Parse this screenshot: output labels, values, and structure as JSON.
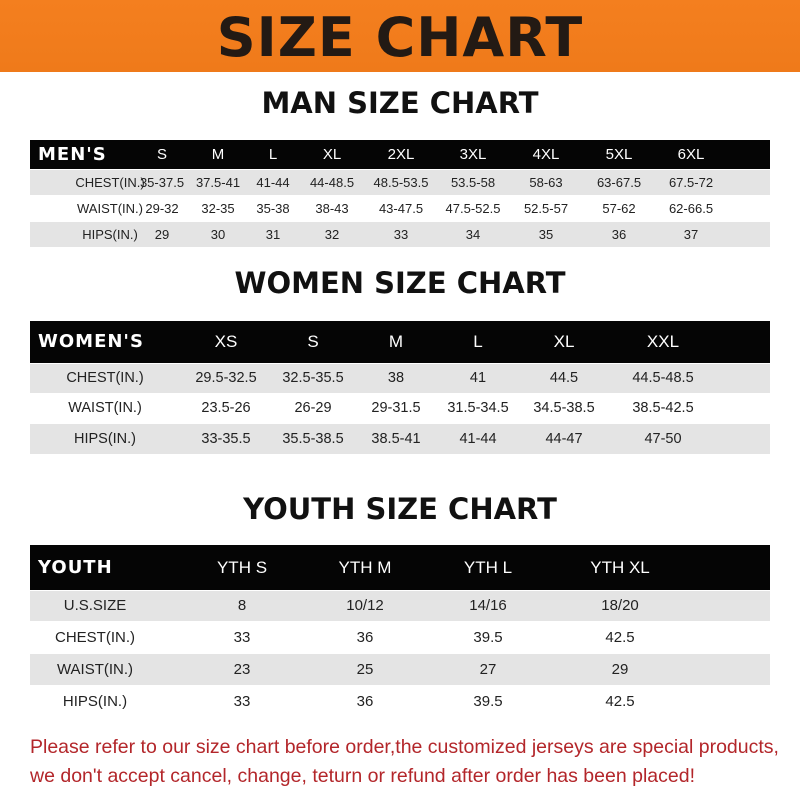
{
  "banner_title": "SIZE CHART",
  "men": {
    "title": "MAN SIZE CHART",
    "header": [
      "MEN'S",
      "S",
      "M",
      "L",
      "XL",
      "2XL",
      "3XL",
      "4XL",
      "5XL",
      "6XL"
    ],
    "rows": [
      [
        "CHEST(IN.)",
        "35-37.5",
        "37.5-41",
        "41-44",
        "44-48.5",
        "48.5-53.5",
        "53.5-58",
        "58-63",
        "63-67.5",
        "67.5-72"
      ],
      [
        "WAIST(IN.)",
        "29-32",
        "32-35",
        "35-38",
        "38-43",
        "43-47.5",
        "47.5-52.5",
        "52.5-57",
        "57-62",
        "62-66.5"
      ],
      [
        "HIPS(IN.)",
        "29",
        "30",
        "31",
        "32",
        "33",
        "34",
        "35",
        "36",
        "37"
      ]
    ]
  },
  "women": {
    "title": "WOMEN SIZE CHART",
    "header": [
      "WOMEN'S",
      "XS",
      "S",
      "M",
      "L",
      "XL",
      "XXL"
    ],
    "rows": [
      [
        "CHEST(IN.)",
        "29.5-32.5",
        "32.5-35.5",
        "38",
        "41",
        "44.5",
        "44.5-48.5"
      ],
      [
        "WAIST(IN.)",
        "23.5-26",
        "26-29",
        "29-31.5",
        "31.5-34.5",
        "34.5-38.5",
        "38.5-42.5"
      ],
      [
        "HIPS(IN.)",
        "33-35.5",
        "35.5-38.5",
        "38.5-41",
        "41-44",
        "44-47",
        "47-50"
      ]
    ]
  },
  "youth": {
    "title": "YOUTH SIZE CHART",
    "header": [
      "YOUTH",
      "YTH S",
      "YTH M",
      "YTH L",
      "YTH XL"
    ],
    "rows": [
      [
        "U.S.SIZE",
        "8",
        "10/12",
        "14/16",
        "18/20"
      ],
      [
        "CHEST(IN.)",
        "33",
        "36",
        "39.5",
        "42.5"
      ],
      [
        "WAIST(IN.)",
        "23",
        "25",
        "27",
        "29"
      ],
      [
        "HIPS(IN.)",
        "33",
        "36",
        "39.5",
        "42.5"
      ]
    ]
  },
  "notice": {
    "line1": "Please refer to our size chart before order,the customized jerseys are special products,",
    "line2": "we don't accept cancel, change, teturn or refund after order has been placed!"
  }
}
